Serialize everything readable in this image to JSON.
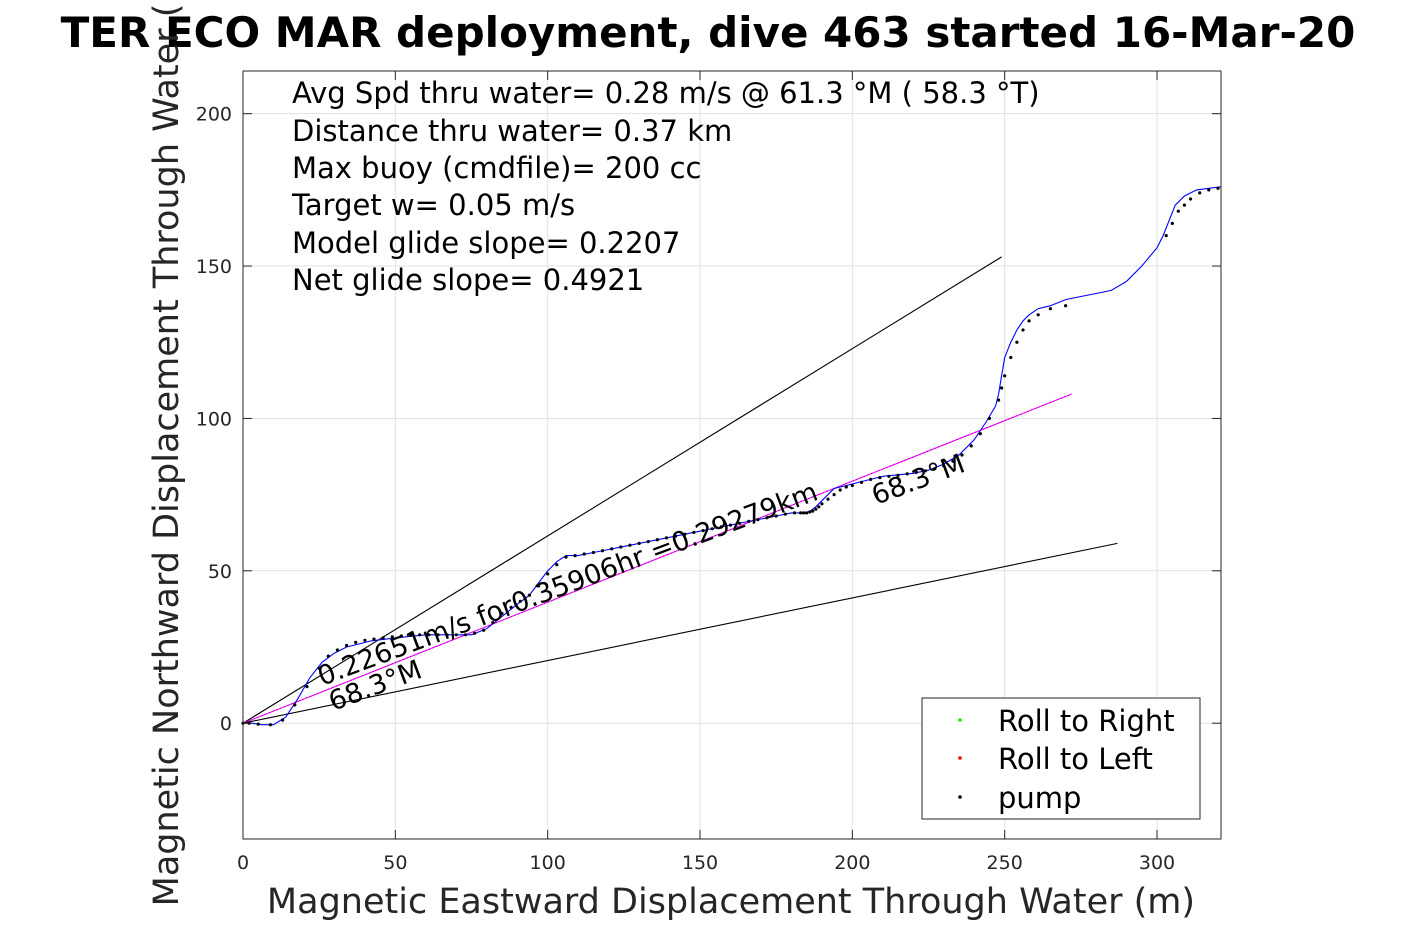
{
  "chart_data": {
    "type": "line",
    "title": "TER ECO MAR deployment, dive 463 started 16-Mar-20",
    "xlabel": "Magnetic Eastward Displacement Through Water (m)",
    "ylabel": "Magnetic Northward Displacement Through Water (",
    "xlim": [
      0,
      321
    ],
    "ylim": [
      -38,
      214
    ],
    "xticks": [
      "0",
      "50",
      "100",
      "150",
      "200",
      "250",
      "300"
    ],
    "yticks": [
      "200",
      "150",
      "100",
      "50",
      "0"
    ],
    "xtick_values": [
      0,
      50,
      100,
      150,
      200,
      250,
      300
    ],
    "ytick_values": [
      200,
      150,
      100,
      50,
      0
    ],
    "grid": true,
    "legend_position": "bottom-right",
    "annotations": [
      "Avg Spd thru water=  0.28 m/s @  61.3 °M ( 58.3 °T)",
      "Distance thru water=  0.37 km",
      "Max buoy (cmdfile)= 200 cc",
      "Target w= 0.05 m/s",
      "Model glide slope= 0.2207",
      "Net glide slope= 0.4921"
    ],
    "track_label": "0.22651m/s for0.35906hr =0.29279km",
    "heading_label_start": "68.3°M",
    "heading_label_end": "68.3°M",
    "legend": [
      {
        "label": "Roll to Right",
        "color": "#00ee00"
      },
      {
        "label": "Roll to Left",
        "color": "#ff0000"
      },
      {
        "label": "pump",
        "color": "#000000"
      }
    ],
    "colors": {
      "track": "#0000ff",
      "heading_line": "#ff00ff",
      "bounds": "#000000",
      "grid": "#e1e1e1"
    },
    "series": [
      {
        "x": [
          0,
          3,
          6,
          10,
          14,
          18,
          22,
          26,
          30,
          34,
          38,
          42,
          46,
          50,
          55,
          60,
          65,
          70,
          75,
          80,
          85,
          90,
          94,
          97,
          100,
          103,
          106,
          110,
          115,
          120,
          125,
          130,
          135,
          140,
          145,
          150,
          155,
          160,
          165,
          170,
          175,
          180,
          184,
          186,
          188,
          191,
          194,
          198,
          202,
          206,
          210,
          215,
          220,
          225,
          230,
          235,
          240,
          244,
          247,
          248,
          249,
          250,
          252,
          254,
          256,
          258,
          261,
          265,
          270,
          275,
          280,
          285,
          290,
          295,
          300,
          302,
          304,
          306,
          309,
          313,
          317,
          321
        ],
        "y": [
          0,
          0,
          -0.5,
          -0.5,
          2,
          8,
          15,
          20,
          23,
          25,
          26,
          27,
          27.5,
          28,
          28.5,
          29,
          29,
          29,
          29,
          31,
          35,
          39,
          42,
          46,
          50,
          53,
          55,
          55,
          56,
          57,
          58,
          59,
          60,
          61,
          62,
          63,
          64,
          65,
          66,
          67,
          68,
          69,
          69,
          69.5,
          71,
          74,
          77,
          78,
          79,
          80,
          81,
          81.5,
          82,
          83,
          85,
          88,
          93,
          99,
          104,
          108,
          114,
          120,
          125,
          129,
          132,
          134,
          136,
          137,
          139,
          140,
          141,
          142,
          145,
          150,
          156,
          160,
          165,
          170,
          173,
          175,
          175.5,
          176
        ]
      }
    ],
    "pump_points": {
      "x": [
        0,
        2,
        5,
        9,
        13,
        17,
        21,
        25,
        28,
        31,
        34,
        37,
        40,
        43,
        46,
        49,
        52,
        55,
        58,
        61,
        64,
        67,
        70,
        73,
        76,
        79,
        82,
        85,
        88,
        91,
        94,
        97,
        100,
        103,
        106,
        109,
        112,
        115,
        118,
        121,
        124,
        127,
        130,
        133,
        136,
        139,
        142,
        145,
        148,
        151,
        154,
        157,
        160,
        163,
        166,
        169,
        172,
        175,
        178,
        181,
        183,
        184,
        185,
        186,
        187,
        188,
        189,
        190,
        192,
        194,
        196,
        198,
        200,
        203,
        206,
        209,
        212,
        215,
        218,
        221,
        224,
        227,
        230,
        233,
        236,
        239,
        242,
        245,
        248,
        249,
        250,
        252,
        254,
        256,
        258,
        261,
        265,
        270,
        303,
        305,
        307,
        309,
        311,
        314,
        317,
        320
      ],
      "y": [
        0,
        0,
        -0.3,
        -0.5,
        1,
        6,
        12,
        18,
        22,
        24,
        25.5,
        26.5,
        27.2,
        27.6,
        28,
        28.3,
        28.6,
        28.8,
        29,
        29,
        29,
        29,
        29,
        29,
        29.5,
        30.5,
        33,
        36,
        38,
        40,
        42,
        45,
        49,
        52,
        54.5,
        55,
        55.5,
        56,
        56.6,
        57.2,
        57.8,
        58.4,
        59,
        59.6,
        60.2,
        60.8,
        61.4,
        62,
        62.6,
        63.2,
        63.8,
        64.4,
        65,
        65.6,
        66.2,
        66.8,
        67.4,
        68,
        68.6,
        69,
        69,
        69,
        69,
        69.3,
        69.6,
        70.2,
        71,
        72,
        73.5,
        75,
        76.5,
        77.5,
        78,
        79,
        80,
        80.6,
        81,
        81.3,
        81.8,
        82.3,
        82.8,
        83.5,
        84.5,
        86,
        88,
        91,
        95,
        100,
        106,
        110,
        114,
        120,
        125,
        129,
        132,
        134,
        136,
        137,
        160,
        164,
        168,
        170,
        172,
        174,
        175,
        175.5
      ]
    },
    "reference_lines": [
      {
        "name": "upper",
        "x": [
          0,
          249
        ],
        "y": [
          0,
          153
        ]
      },
      {
        "name": "heading",
        "x": [
          0,
          272
        ],
        "y": [
          0,
          108
        ]
      },
      {
        "name": "lower",
        "x": [
          0,
          287
        ],
        "y": [
          0,
          59
        ]
      }
    ]
  }
}
